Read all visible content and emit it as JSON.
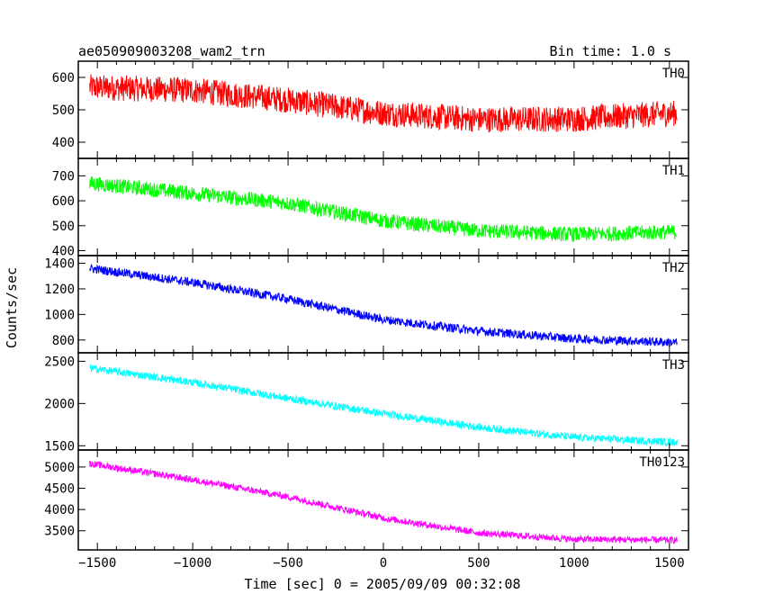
{
  "header": {
    "title": "ae050909003208_wam2_trn",
    "bin_time": "Bin time: 1.0 s"
  },
  "axes": {
    "ylabel": "Counts/sec",
    "xlabel": "Time [sec] 0 = 2005/09/09 00:32:08"
  },
  "chart_data": [
    {
      "type": "line",
      "panel": "TH0",
      "color": "#ff0000",
      "xlim": [
        -1600,
        1600
      ],
      "ylim": [
        350,
        650
      ],
      "x_ticks": [
        -1500,
        -1000,
        -500,
        0,
        500,
        1000,
        1500
      ],
      "y_ticks": [
        400,
        500,
        600
      ],
      "x_range": [
        -1540,
        1540
      ],
      "trend": {
        "x": [
          -1540,
          -1000,
          -500,
          0,
          500,
          1000,
          1540
        ],
        "y": [
          570,
          560,
          530,
          490,
          470,
          472,
          490
        ]
      },
      "noise_amplitude": 40,
      "series": [
        {
          "name": "TH0"
        }
      ]
    },
    {
      "type": "line",
      "panel": "TH1",
      "color": "#00ff00",
      "xlim": [
        -1600,
        1600
      ],
      "ylim": [
        380,
        770
      ],
      "x_ticks": [
        -1500,
        -1000,
        -500,
        0,
        500,
        1000,
        1500
      ],
      "y_ticks": [
        400,
        500,
        600,
        700
      ],
      "x_range": [
        -1540,
        1540
      ],
      "trend": {
        "x": [
          -1540,
          -1000,
          -500,
          0,
          500,
          1000,
          1540
        ],
        "y": [
          670,
          630,
          590,
          520,
          480,
          465,
          475
        ]
      },
      "noise_amplitude": 30,
      "series": [
        {
          "name": "TH1"
        }
      ]
    },
    {
      "type": "line",
      "panel": "TH2",
      "color": "#0000ff",
      "xlim": [
        -1600,
        1600
      ],
      "ylim": [
        700,
        1460
      ],
      "x_ticks": [
        -1500,
        -1000,
        -500,
        0,
        500,
        1000,
        1500
      ],
      "y_ticks": [
        800,
        1000,
        1200,
        1400
      ],
      "x_range": [
        -1540,
        1540
      ],
      "trend": {
        "x": [
          -1540,
          -1000,
          -500,
          0,
          500,
          1000,
          1540
        ],
        "y": [
          1360,
          1250,
          1120,
          960,
          870,
          810,
          780
        ]
      },
      "noise_amplitude": 35,
      "series": [
        {
          "name": "TH2"
        }
      ]
    },
    {
      "type": "line",
      "panel": "TH3",
      "color": "#00ffff",
      "xlim": [
        -1600,
        1600
      ],
      "ylim": [
        1450,
        2600
      ],
      "x_ticks": [
        -1500,
        -1000,
        -500,
        0,
        500,
        1000,
        1500
      ],
      "y_ticks": [
        1500,
        2000,
        2500
      ],
      "x_range": [
        -1540,
        1540
      ],
      "trend": {
        "x": [
          -1540,
          -1000,
          -500,
          0,
          500,
          1000,
          1540
        ],
        "y": [
          2420,
          2250,
          2060,
          1880,
          1720,
          1600,
          1540
        ]
      },
      "noise_amplitude": 45,
      "series": [
        {
          "name": "TH3"
        }
      ]
    },
    {
      "type": "line",
      "panel": "TH0123",
      "color": "#ff00ff",
      "xlim": [
        -1600,
        1600
      ],
      "ylim": [
        3050,
        5400
      ],
      "x_ticks": [
        -1500,
        -1000,
        -500,
        0,
        500,
        1000,
        1500
      ],
      "y_ticks": [
        3500,
        4000,
        4500,
        5000
      ],
      "x_range": [
        -1540,
        1540
      ],
      "trend": {
        "x": [
          -1540,
          -1000,
          -500,
          0,
          500,
          1000,
          1540
        ],
        "y": [
          5080,
          4700,
          4300,
          3800,
          3450,
          3300,
          3280
        ]
      },
      "noise_amplitude": 80,
      "series": [
        {
          "name": "TH0123"
        }
      ]
    }
  ]
}
